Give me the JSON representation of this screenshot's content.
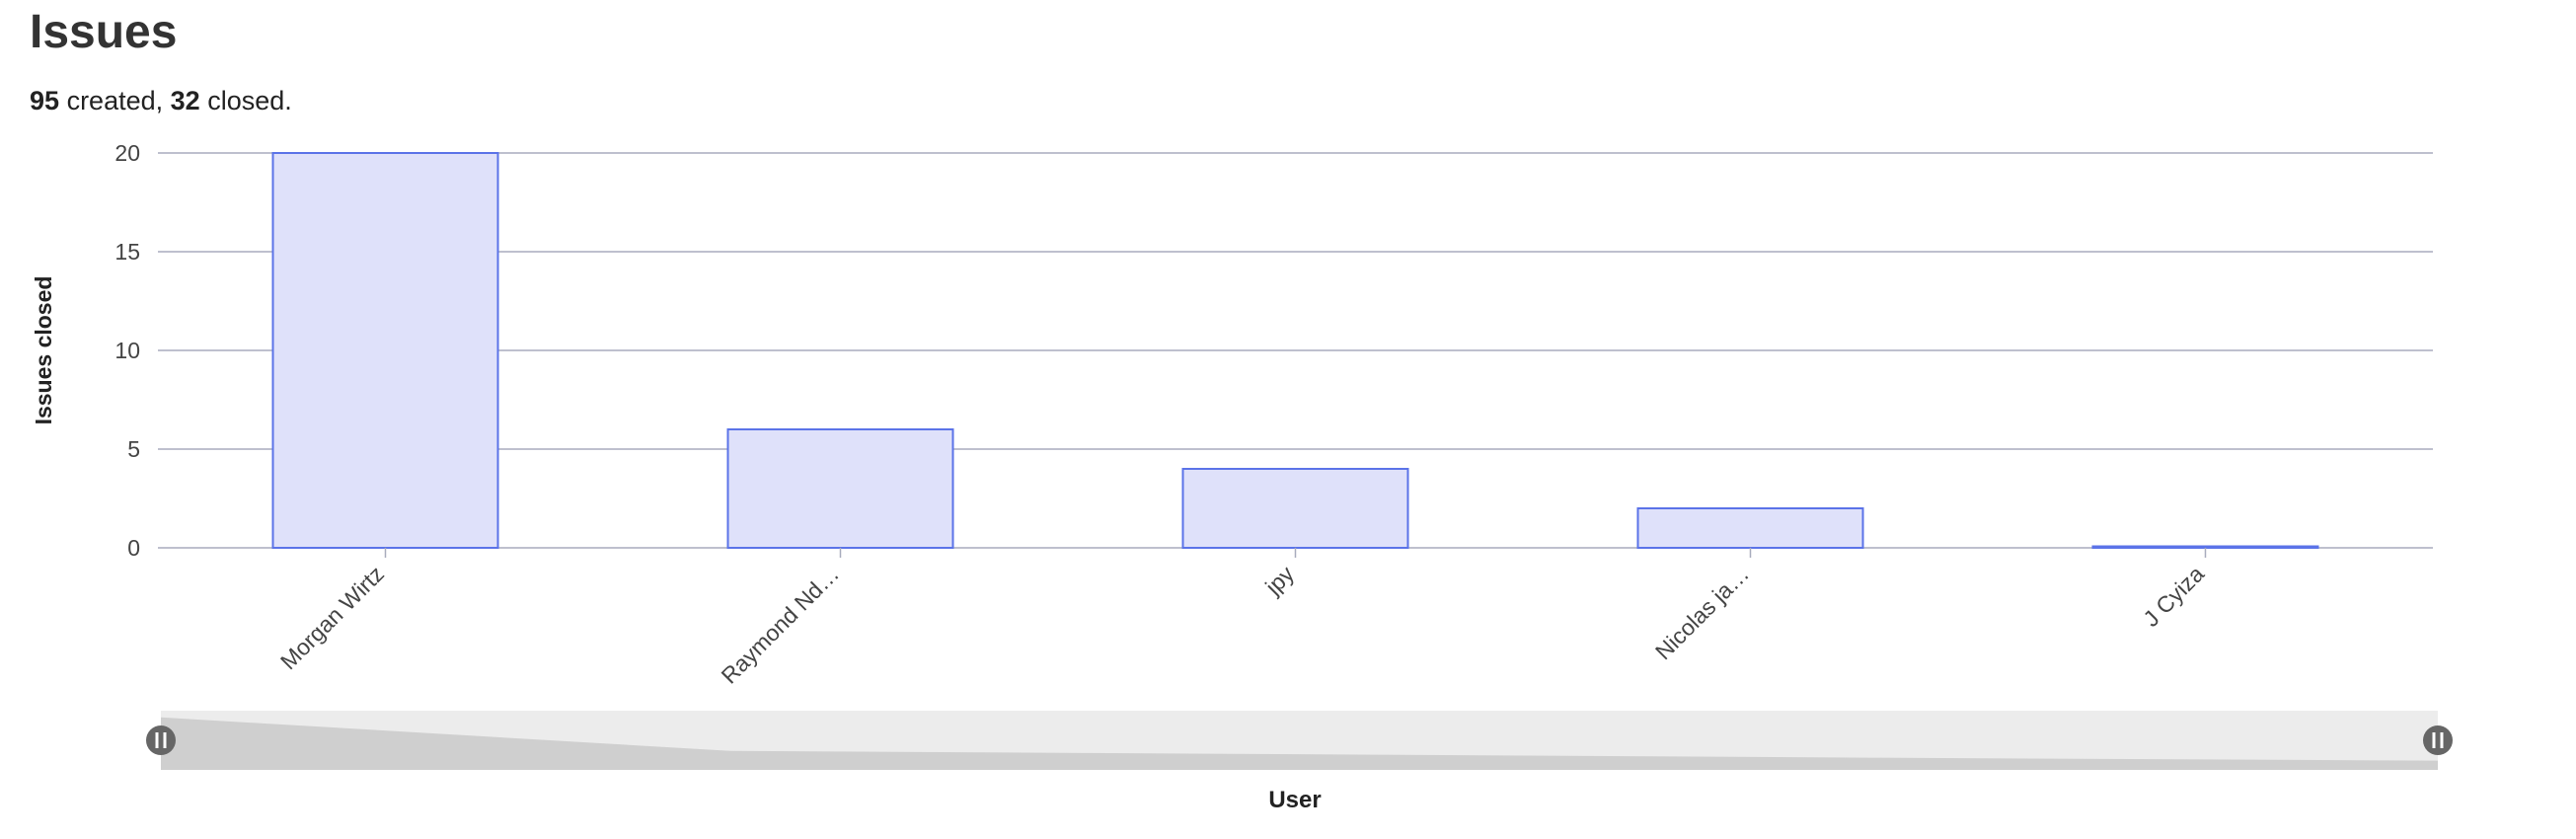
{
  "header": {
    "title": "Issues",
    "created_count": "95",
    "created_label": "created,",
    "closed_count": "32",
    "closed_label": "closed."
  },
  "colors": {
    "bar_fill": "#dfe1fa",
    "bar_stroke": "#5b73e8",
    "grid": "#a8acbd",
    "zoom_track": "#ececec",
    "zoom_shape": "#cfcfcf",
    "handle": "#666666"
  },
  "chart_data": {
    "type": "bar",
    "categories": [
      "Morgan Wirtz",
      "Raymond Nd…",
      "jpy",
      "Nicolas ja…",
      "J Cyiza"
    ],
    "values": [
      20,
      6,
      4,
      2,
      0
    ],
    "xlabel": "User",
    "ylabel": "Issues closed",
    "ylim": [
      0,
      20
    ],
    "yticks": [
      0,
      5,
      10,
      15,
      20
    ],
    "grid": true,
    "legend": "none",
    "zoom_slider": true
  }
}
